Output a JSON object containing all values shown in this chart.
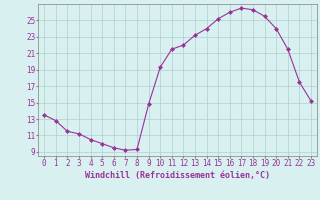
{
  "x": [
    0,
    1,
    2,
    3,
    4,
    5,
    6,
    7,
    8,
    9,
    10,
    11,
    12,
    13,
    14,
    15,
    16,
    17,
    18,
    19,
    20,
    21,
    22,
    23
  ],
  "y": [
    13.5,
    12.8,
    11.5,
    11.2,
    10.5,
    10.0,
    9.5,
    9.2,
    9.3,
    14.8,
    19.3,
    21.5,
    22.0,
    23.2,
    24.0,
    25.2,
    26.0,
    26.5,
    26.3,
    25.5,
    24.0,
    21.5,
    17.5,
    15.2
  ],
  "line_color": "#993399",
  "marker": "D",
  "marker_size": 2,
  "bg_color": "#d8f0f0",
  "grid_color": "#b0d0d0",
  "xlabel": "Windchill (Refroidissement éolien,°C)",
  "xlim": [
    -0.5,
    23.5
  ],
  "ylim": [
    8.5,
    27.0
  ],
  "yticks": [
    9,
    11,
    13,
    15,
    17,
    19,
    21,
    23,
    25
  ],
  "xticks": [
    0,
    1,
    2,
    3,
    4,
    5,
    6,
    7,
    8,
    9,
    10,
    11,
    12,
    13,
    14,
    15,
    16,
    17,
    18,
    19,
    20,
    21,
    22,
    23
  ],
  "xtick_labels": [
    "0",
    "1",
    "2",
    "3",
    "4",
    "5",
    "6",
    "7",
    "8",
    "9",
    "10",
    "11",
    "12",
    "13",
    "14",
    "15",
    "16",
    "17",
    "18",
    "19",
    "20",
    "21",
    "22",
    "23"
  ],
  "ytick_labels": [
    "9",
    "11",
    "13",
    "15",
    "17",
    "19",
    "21",
    "23",
    "25"
  ],
  "tick_color": "#993399",
  "label_color": "#993399",
  "label_fontsize": 6,
  "tick_fontsize": 5.5,
  "spine_color": "#808080"
}
